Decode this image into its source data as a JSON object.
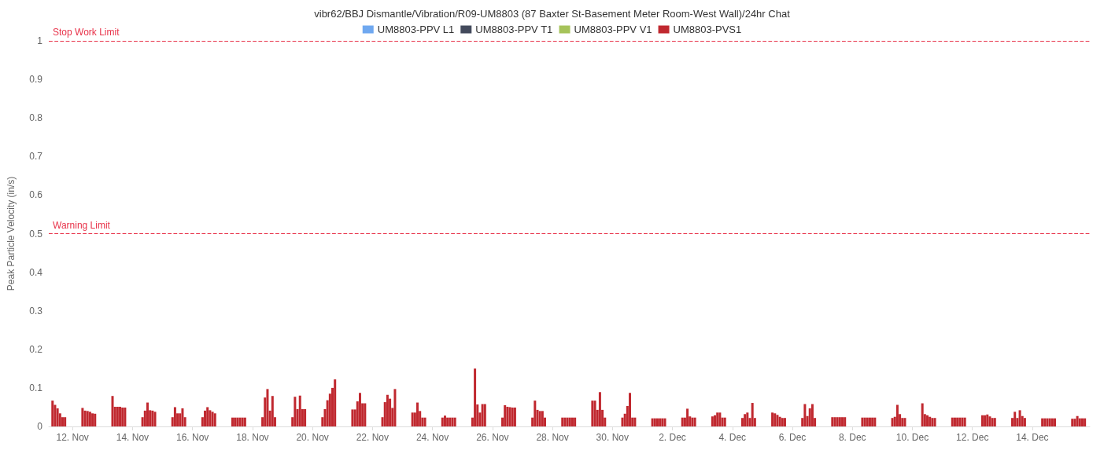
{
  "chart_data": {
    "type": "bar",
    "title": "vibr62/BBJ Dismantle/Vibration/R09-UM8803 (87 Baxter St-Basement Meter Room-West Wall)/24hr Chat",
    "ylabel": "Peak Particle Velocity (in/s)",
    "x": [
      "--11-11T08:00",
      "--11-11T10:00",
      "--11-11T12:00",
      "--11-11T14:00",
      "--11-11T16:00",
      "--11-11T18:00",
      "--11-12T08:00",
      "--11-12T10:00",
      "--11-12T12:00",
      "--11-12T14:00",
      "--11-12T16:00",
      "--11-12T18:00",
      "--11-13T08:00",
      "--11-13T10:00",
      "--11-13T12:00",
      "--11-13T14:00",
      "--11-13T16:00",
      "--11-13T18:00",
      "--11-14T08:00",
      "--11-14T10:00",
      "--11-14T12:00",
      "--11-14T14:00",
      "--11-14T16:00",
      "--11-14T18:00",
      "--11-15T08:00",
      "--11-15T10:00",
      "--11-15T12:00",
      "--11-15T14:00",
      "--11-15T16:00",
      "--11-15T18:00",
      "--11-16T08:00",
      "--11-16T10:00",
      "--11-16T12:00",
      "--11-16T14:00",
      "--11-16T16:00",
      "--11-16T18:00",
      "--11-17T08:00",
      "--11-17T10:00",
      "--11-17T12:00",
      "--11-17T14:00",
      "--11-17T16:00",
      "--11-17T18:00",
      "--11-18T08:00",
      "--11-18T10:00",
      "--11-18T12:00",
      "--11-18T14:00",
      "--11-18T16:00",
      "--11-18T18:00",
      "--11-19T08:00",
      "--11-19T10:00",
      "--11-19T12:00",
      "--11-19T14:00",
      "--11-19T16:00",
      "--11-19T18:00",
      "--11-20T08:00",
      "--11-20T10:00",
      "--11-20T12:00",
      "--11-20T14:00",
      "--11-20T16:00",
      "--11-20T18:00",
      "--11-21T08:00",
      "--11-21T10:00",
      "--11-21T12:00",
      "--11-21T14:00",
      "--11-21T16:00",
      "--11-21T18:00",
      "--11-22T08:00",
      "--11-22T10:00",
      "--11-22T12:00",
      "--11-22T14:00",
      "--11-22T16:00",
      "--11-22T18:00",
      "--11-23T08:00",
      "--11-23T10:00",
      "--11-23T12:00",
      "--11-23T14:00",
      "--11-23T16:00",
      "--11-23T18:00",
      "--11-24T08:00",
      "--11-24T10:00",
      "--11-24T12:00",
      "--11-24T14:00",
      "--11-24T16:00",
      "--11-24T18:00",
      "--11-25T08:00",
      "--11-25T10:00",
      "--11-25T12:00",
      "--11-25T14:00",
      "--11-25T16:00",
      "--11-25T18:00",
      "--11-26T08:00",
      "--11-26T10:00",
      "--11-26T12:00",
      "--11-26T14:00",
      "--11-26T16:00",
      "--11-26T18:00",
      "--11-27T08:00",
      "--11-27T10:00",
      "--11-27T12:00",
      "--11-27T14:00",
      "--11-27T16:00",
      "--11-27T18:00",
      "--11-28T08:00",
      "--11-28T10:00",
      "--11-28T12:00",
      "--11-28T14:00",
      "--11-28T16:00",
      "--11-28T18:00",
      "--11-29T08:00",
      "--11-29T10:00",
      "--11-29T12:00",
      "--11-29T14:00",
      "--11-29T16:00",
      "--11-29T18:00",
      "--11-30T08:00",
      "--11-30T10:00",
      "--11-30T12:00",
      "--11-30T14:00",
      "--11-30T16:00",
      "--11-30T18:00",
      "--12-01T08:00",
      "--12-01T10:00",
      "--12-01T12:00",
      "--12-01T14:00",
      "--12-01T16:00",
      "--12-01T18:00",
      "--12-02T08:00",
      "--12-02T10:00",
      "--12-02T12:00",
      "--12-02T14:00",
      "--12-02T16:00",
      "--12-02T18:00",
      "--12-03T08:00",
      "--12-03T10:00",
      "--12-03T12:00",
      "--12-03T14:00",
      "--12-03T16:00",
      "--12-03T18:00",
      "--12-04T08:00",
      "--12-04T10:00",
      "--12-04T12:00",
      "--12-04T14:00",
      "--12-04T16:00",
      "--12-04T18:00",
      "--12-05T08:00",
      "--12-05T10:00",
      "--12-05T12:00",
      "--12-05T14:00",
      "--12-05T16:00",
      "--12-05T18:00",
      "--12-06T08:00",
      "--12-06T10:00",
      "--12-06T12:00",
      "--12-06T14:00",
      "--12-06T16:00",
      "--12-06T18:00",
      "--12-07T08:00",
      "--12-07T10:00",
      "--12-07T12:00",
      "--12-07T14:00",
      "--12-07T16:00",
      "--12-07T18:00",
      "--12-08T08:00",
      "--12-08T10:00",
      "--12-08T12:00",
      "--12-08T14:00",
      "--12-08T16:00",
      "--12-08T18:00",
      "--12-09T08:00",
      "--12-09T10:00",
      "--12-09T12:00",
      "--12-09T14:00",
      "--12-09T16:00",
      "--12-09T18:00",
      "--12-10T08:00",
      "--12-10T10:00",
      "--12-10T12:00",
      "--12-10T14:00",
      "--12-10T16:00",
      "--12-10T18:00",
      "--12-11T08:00",
      "--12-11T10:00",
      "--12-11T12:00",
      "--12-11T14:00",
      "--12-11T16:00",
      "--12-11T18:00",
      "--12-12T08:00",
      "--12-12T10:00",
      "--12-12T12:00",
      "--12-12T14:00",
      "--12-12T16:00",
      "--12-12T18:00",
      "--12-13T08:00",
      "--12-13T10:00",
      "--12-13T12:00",
      "--12-13T14:00",
      "--12-13T16:00",
      "--12-13T18:00",
      "--12-14T08:00",
      "--12-14T10:00",
      "--12-14T12:00",
      "--12-14T14:00",
      "--12-14T16:00",
      "--12-14T18:00",
      "--12-15T08:00",
      "--12-15T10:00",
      "--12-15T12:00",
      "--12-15T14:00",
      "--12-15T16:00",
      "--12-15T18:00"
    ],
    "series": [
      {
        "name": "UM8803-PPV L1",
        "color": "#6fa8f0",
        "values": [
          null,
          null,
          null,
          null,
          null,
          null,
          null,
          null,
          null,
          null,
          null,
          null,
          null,
          null,
          null,
          null,
          null,
          null,
          null,
          null,
          null,
          null,
          null,
          null,
          null,
          null,
          null,
          null,
          null,
          null,
          null,
          null,
          null,
          null,
          null,
          null,
          null,
          null,
          null,
          null,
          null,
          null,
          null,
          null,
          null,
          null,
          null,
          null,
          null,
          null,
          null,
          null,
          null,
          null,
          null,
          null,
          null,
          null,
          null,
          null,
          null,
          null,
          null,
          null,
          null,
          null,
          null,
          null,
          null,
          null,
          null,
          null,
          null,
          null,
          null,
          null,
          null,
          null,
          null,
          null,
          null,
          null,
          null,
          null,
          null,
          null,
          null,
          null,
          null,
          null,
          null,
          null,
          null,
          null,
          null,
          null,
          null,
          null,
          null,
          null,
          null,
          null,
          null,
          null,
          null,
          null,
          null,
          null,
          null,
          null,
          null,
          null,
          null,
          null,
          null,
          null,
          null,
          null,
          null,
          null,
          null,
          null,
          null,
          null,
          null,
          null,
          null,
          null,
          null,
          null,
          null,
          null,
          null,
          null,
          null,
          null,
          null,
          null,
          null,
          null,
          null,
          null,
          null,
          null,
          null,
          null,
          null,
          null,
          null,
          null,
          null,
          null,
          null,
          null,
          null,
          null,
          null,
          null,
          null,
          null,
          null,
          null,
          null,
          null,
          null,
          null,
          null,
          null,
          null,
          null,
          null,
          null,
          null,
          null,
          null,
          null,
          null,
          null,
          null,
          null,
          null,
          null,
          null,
          null,
          null,
          null,
          null,
          null,
          null,
          null,
          null,
          null,
          null,
          null,
          null,
          null,
          null,
          null,
          null,
          null,
          null,
          null,
          null,
          null,
          null,
          null,
          null,
          null,
          null,
          null
        ]
      },
      {
        "name": "UM8803-PPV T1",
        "color": "#434a5c",
        "values": [
          null,
          null,
          null,
          null,
          null,
          null,
          null,
          null,
          null,
          null,
          null,
          null,
          null,
          null,
          null,
          null,
          null,
          null,
          null,
          null,
          null,
          null,
          null,
          null,
          null,
          null,
          null,
          null,
          null,
          null,
          null,
          null,
          null,
          null,
          null,
          null,
          null,
          null,
          null,
          null,
          null,
          null,
          null,
          null,
          null,
          null,
          null,
          null,
          null,
          null,
          null,
          null,
          null,
          null,
          null,
          null,
          null,
          null,
          null,
          null,
          null,
          null,
          null,
          null,
          null,
          null,
          null,
          null,
          null,
          null,
          null,
          null,
          null,
          null,
          null,
          null,
          null,
          null,
          null,
          null,
          null,
          null,
          null,
          null,
          null,
          null,
          null,
          null,
          null,
          null,
          null,
          null,
          null,
          null,
          null,
          null,
          null,
          null,
          null,
          null,
          null,
          null,
          null,
          null,
          null,
          null,
          null,
          null,
          null,
          null,
          null,
          null,
          null,
          null,
          null,
          null,
          null,
          null,
          null,
          null,
          null,
          null,
          null,
          null,
          null,
          null,
          null,
          null,
          null,
          null,
          null,
          null,
          null,
          null,
          null,
          null,
          null,
          null,
          null,
          null,
          null,
          null,
          null,
          null,
          null,
          null,
          null,
          null,
          null,
          null,
          null,
          null,
          null,
          null,
          null,
          null,
          null,
          null,
          null,
          null,
          null,
          null,
          null,
          null,
          null,
          null,
          null,
          null,
          null,
          null,
          null,
          null,
          null,
          null,
          null,
          null,
          null,
          null,
          null,
          null,
          null,
          null,
          null,
          null,
          null,
          null,
          null,
          null,
          null,
          null,
          null,
          null,
          null,
          null,
          null,
          null,
          null,
          null,
          null,
          null,
          null,
          null,
          null,
          null,
          null,
          null,
          null,
          null,
          null,
          null
        ]
      },
      {
        "name": "UM8803-PPV V1",
        "color": "#a6c35a",
        "values": [
          null,
          null,
          null,
          null,
          null,
          null,
          null,
          null,
          null,
          null,
          null,
          null,
          null,
          null,
          null,
          null,
          null,
          null,
          null,
          null,
          null,
          null,
          null,
          null,
          null,
          null,
          null,
          null,
          null,
          null,
          null,
          null,
          null,
          null,
          null,
          null,
          null,
          null,
          null,
          null,
          null,
          null,
          null,
          null,
          null,
          null,
          null,
          null,
          null,
          null,
          null,
          null,
          null,
          null,
          null,
          null,
          null,
          null,
          null,
          null,
          null,
          null,
          null,
          null,
          null,
          null,
          null,
          null,
          null,
          null,
          null,
          null,
          null,
          null,
          null,
          null,
          null,
          null,
          null,
          null,
          null,
          null,
          null,
          null,
          null,
          null,
          null,
          null,
          null,
          null,
          null,
          null,
          null,
          null,
          null,
          null,
          null,
          null,
          null,
          null,
          null,
          null,
          null,
          null,
          null,
          null,
          null,
          null,
          null,
          null,
          null,
          null,
          null,
          null,
          null,
          null,
          null,
          null,
          null,
          null,
          null,
          null,
          null,
          null,
          null,
          null,
          null,
          null,
          null,
          null,
          null,
          null,
          null,
          null,
          null,
          null,
          null,
          null,
          null,
          null,
          null,
          null,
          null,
          null,
          null,
          null,
          null,
          null,
          null,
          null,
          null,
          null,
          null,
          null,
          null,
          null,
          null,
          null,
          null,
          null,
          null,
          null,
          null,
          null,
          null,
          null,
          null,
          null,
          null,
          null,
          null,
          null,
          null,
          null,
          null,
          null,
          null,
          null,
          null,
          null,
          null,
          null,
          null,
          null,
          null,
          null,
          null,
          null,
          null,
          null,
          null,
          null,
          null,
          null,
          null,
          null,
          null,
          null,
          null,
          null,
          null,
          null,
          null,
          null,
          null,
          null,
          null,
          null,
          null,
          null
        ]
      },
      {
        "name": "UM8803-PVS1",
        "color": "#c0282f",
        "values": [
          0.067,
          0.056,
          0.047,
          0.034,
          0.024,
          0.024,
          0.048,
          0.041,
          0.04,
          0.038,
          0.034,
          0.033,
          0.079,
          0.051,
          0.051,
          0.051,
          0.049,
          0.049,
          0.024,
          0.041,
          0.062,
          0.042,
          0.041,
          0.038,
          0.024,
          0.05,
          0.034,
          0.034,
          0.047,
          0.024,
          0.024,
          0.041,
          0.05,
          0.042,
          0.038,
          0.034,
          0.023,
          0.023,
          0.023,
          0.023,
          0.023,
          0.023,
          0.024,
          0.075,
          0.097,
          0.041,
          0.079,
          0.024,
          0.024,
          0.077,
          0.045,
          0.08,
          0.045,
          0.045,
          0.024,
          0.045,
          0.068,
          0.085,
          0.1,
          0.122,
          0.044,
          0.044,
          0.065,
          0.087,
          0.06,
          0.06,
          0.024,
          0.063,
          0.082,
          0.072,
          0.048,
          0.097,
          0.036,
          0.036,
          0.062,
          0.04,
          0.023,
          0.023,
          0.023,
          0.028,
          0.023,
          0.023,
          0.023,
          0.023,
          0.023,
          0.15,
          0.057,
          0.036,
          0.058,
          0.058,
          0.023,
          0.055,
          0.051,
          0.05,
          0.049,
          0.049,
          0.023,
          0.067,
          0.043,
          0.04,
          0.04,
          0.023,
          0.023,
          0.023,
          0.023,
          0.023,
          0.023,
          0.023,
          0.067,
          0.067,
          0.043,
          0.089,
          0.043,
          0.023,
          0.023,
          0.033,
          0.053,
          0.087,
          0.023,
          0.023,
          0.021,
          0.021,
          0.021,
          0.021,
          0.021,
          0.021,
          0.023,
          0.023,
          0.046,
          0.026,
          0.023,
          0.023,
          0.026,
          0.029,
          0.036,
          0.036,
          0.023,
          0.023,
          0.022,
          0.032,
          0.036,
          0.022,
          0.061,
          0.022,
          0.036,
          0.034,
          0.03,
          0.025,
          0.022,
          0.022,
          0.022,
          0.058,
          0.027,
          0.047,
          0.058,
          0.022,
          0.024,
          0.024,
          0.024,
          0.024,
          0.024,
          0.024,
          0.023,
          0.023,
          0.023,
          0.023,
          0.023,
          0.023,
          0.022,
          0.025,
          0.056,
          0.032,
          0.022,
          0.022,
          0.06,
          0.032,
          0.029,
          0.025,
          0.022,
          0.022,
          0.023,
          0.023,
          0.023,
          0.023,
          0.023,
          0.023,
          0.029,
          0.029,
          0.031,
          0.026,
          0.022,
          0.022,
          0.022,
          0.038,
          0.022,
          0.042,
          0.027,
          0.022,
          0.021,
          0.021,
          0.021,
          0.021,
          0.021,
          0.021,
          0.02,
          0.02,
          0.027,
          0.021,
          0.021,
          0.021
        ]
      }
    ],
    "xlim": [
      "--11-11T05:00",
      "--12-15T22:00"
    ],
    "xticks": [
      {
        "value": "--11-12",
        "label": "12. Nov"
      },
      {
        "value": "--11-14",
        "label": "14. Nov"
      },
      {
        "value": "--11-16",
        "label": "16. Nov"
      },
      {
        "value": "--11-18",
        "label": "18. Nov"
      },
      {
        "value": "--11-20",
        "label": "20. Nov"
      },
      {
        "value": "--11-22",
        "label": "22. Nov"
      },
      {
        "value": "--11-24",
        "label": "24. Nov"
      },
      {
        "value": "--11-26",
        "label": "26. Nov"
      },
      {
        "value": "--11-28",
        "label": "28. Nov"
      },
      {
        "value": "--11-30",
        "label": "30. Nov"
      },
      {
        "value": "--12-02",
        "label": "2. Dec"
      },
      {
        "value": "--12-04",
        "label": "4. Dec"
      },
      {
        "value": "--12-06",
        "label": "6. Dec"
      },
      {
        "value": "--12-08",
        "label": "8. Dec"
      },
      {
        "value": "--12-10",
        "label": "10. Dec"
      },
      {
        "value": "--12-12",
        "label": "12. Dec"
      },
      {
        "value": "--12-14",
        "label": "14. Dec"
      }
    ],
    "ylim": [
      0,
      1
    ],
    "yticks": [
      0,
      0.1,
      0.2,
      0.3,
      0.4,
      0.5,
      0.6,
      0.7,
      0.8,
      0.9,
      1
    ],
    "ref_lines": [
      {
        "axis": "y",
        "value": 1,
        "label": "Stop Work Limit",
        "color": "#e8334a",
        "line_style": "dashed"
      },
      {
        "axis": "y",
        "value": 0.5,
        "label": "Warning Limit",
        "color": "#e8334a",
        "line_style": "dashed"
      }
    ],
    "legend": "top",
    "grid": false
  }
}
